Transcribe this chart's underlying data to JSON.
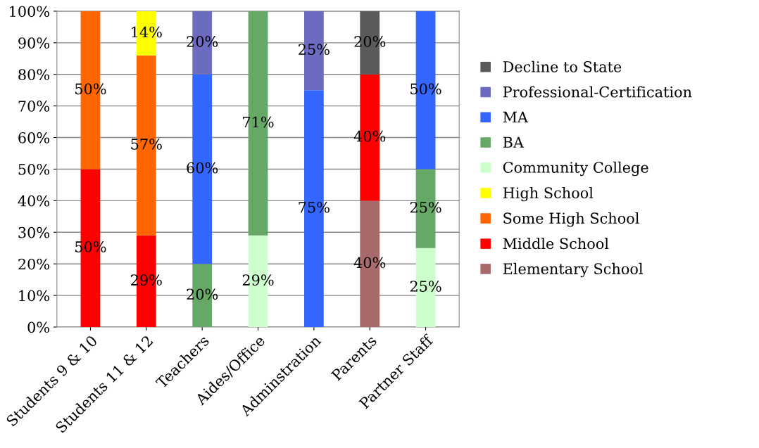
{
  "chart_data": {
    "type": "bar",
    "stacked": true,
    "categories": [
      "Students 9 & 10",
      "Students 11 & 12",
      "Teachers",
      "Aides/Office",
      "Adminstration",
      "Parents",
      "Partner Staff"
    ],
    "series": [
      {
        "name": "Elementary School",
        "color": "#a86a6a",
        "values": [
          null,
          null,
          null,
          null,
          null,
          40,
          null
        ],
        "value_labels": [
          null,
          null,
          null,
          null,
          null,
          "40%",
          null
        ]
      },
      {
        "name": "Middle School",
        "color": "#ff0000",
        "values": [
          50,
          29,
          null,
          null,
          null,
          40,
          null
        ],
        "value_labels": [
          "50%",
          "29%",
          null,
          null,
          null,
          "40%",
          null
        ]
      },
      {
        "name": "Some High School",
        "color": "#ff6600",
        "values": [
          50,
          57,
          null,
          null,
          null,
          null,
          null
        ],
        "value_labels": [
          "50%",
          "57%",
          null,
          null,
          null,
          null,
          null
        ]
      },
      {
        "name": "High School",
        "color": "#ffff00",
        "values": [
          null,
          14,
          null,
          null,
          null,
          null,
          null
        ],
        "value_labels": [
          null,
          "14%",
          null,
          null,
          null,
          null,
          null
        ]
      },
      {
        "name": "Community College",
        "color": "#ccffcc",
        "values": [
          null,
          null,
          null,
          29,
          null,
          null,
          25
        ],
        "value_labels": [
          null,
          null,
          null,
          "29%",
          null,
          null,
          "25%"
        ]
      },
      {
        "name": "BA",
        "color": "#66a866",
        "values": [
          null,
          null,
          20,
          71,
          null,
          null,
          25
        ],
        "value_labels": [
          null,
          null,
          "20%",
          "71%",
          null,
          null,
          "25%"
        ]
      },
      {
        "name": "MA",
        "color": "#3366ff",
        "values": [
          null,
          null,
          60,
          null,
          75,
          null,
          50
        ],
        "value_labels": [
          null,
          null,
          "60%",
          null,
          "75%",
          null,
          "50%"
        ]
      },
      {
        "name": "Professional-Certification",
        "color": "#6b6bc0",
        "values": [
          null,
          null,
          20,
          null,
          25,
          null,
          null
        ],
        "value_labels": [
          null,
          null,
          "20%",
          null,
          "25%",
          null,
          null
        ]
      },
      {
        "name": "Decline to State",
        "color": "#5a5a5a",
        "values": [
          null,
          null,
          null,
          null,
          null,
          20,
          null
        ],
        "value_labels": [
          null,
          null,
          null,
          null,
          null,
          "20%",
          null
        ]
      }
    ],
    "ylim": [
      0,
      100
    ],
    "yticks": [
      {
        "value": 0,
        "label": "0%"
      },
      {
        "value": 10,
        "label": "10%"
      },
      {
        "value": 20,
        "label": "20%"
      },
      {
        "value": 30,
        "label": "30%"
      },
      {
        "value": 40,
        "label": "40%"
      },
      {
        "value": 50,
        "label": "50%"
      },
      {
        "value": 60,
        "label": "60%"
      },
      {
        "value": 70,
        "label": "70%"
      },
      {
        "value": 80,
        "label": "80%"
      },
      {
        "value": 90,
        "label": "90%"
      },
      {
        "value": 100,
        "label": "100%"
      }
    ],
    "grid": "y",
    "legend": "right"
  }
}
